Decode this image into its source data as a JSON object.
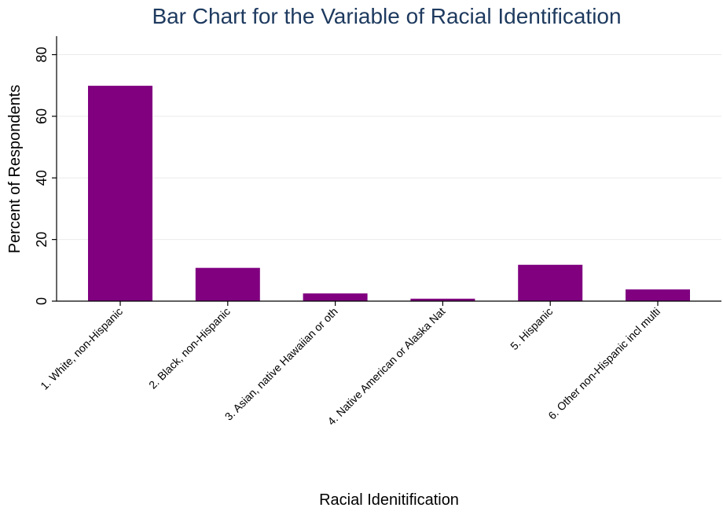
{
  "chart_data": {
    "type": "bar",
    "title": "Bar Chart for the Variable of Racial Identification",
    "xlabel": "Racial Idenitification",
    "ylabel": "Percent of Respondents",
    "categories": [
      "1. White, non-Hispanic",
      "2. Black, non-Hispanic",
      "3. Asian, native Hawaiian or oth",
      "4. Native American or Alaska Nat",
      "5. Hispanic",
      "6. Other non-Hispanic incl multi"
    ],
    "values": [
      69.9,
      10.8,
      2.5,
      0.8,
      11.8,
      3.8
    ],
    "ylim": [
      0,
      86
    ],
    "yticks": [
      0,
      20,
      40,
      60,
      80
    ],
    "grid": true,
    "legend": "none",
    "colors": {
      "bar": "#800080",
      "title": "#1e3a5f",
      "axis": "#000000",
      "grid": "#ebebeb",
      "background": "#ffffff"
    }
  }
}
